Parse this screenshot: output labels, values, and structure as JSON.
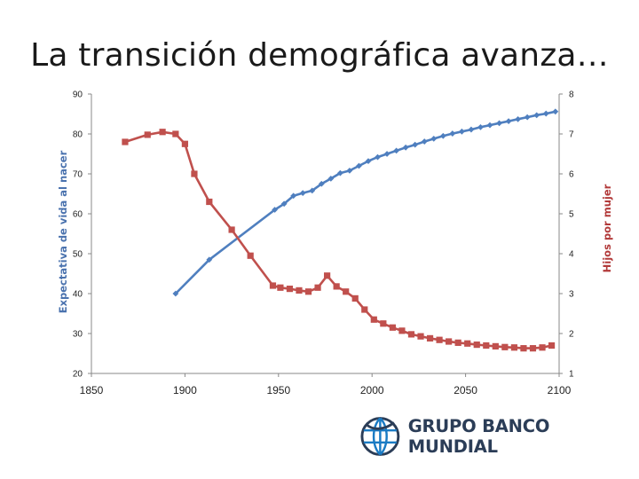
{
  "slide": {
    "title": "La transición demográfica avanza…"
  },
  "logo": {
    "text": "GRUPO BANCO MUNDIAL",
    "icon": "globe-icon"
  },
  "colors": {
    "life_expectancy": "#4f7fbf",
    "children_per_woman": "#c0504d",
    "left_label": "#4a72ae",
    "right_label": "#b23a3a",
    "logo_blue": "#1a7bc4",
    "logo_navy": "#2b3d57"
  },
  "chart_data": {
    "type": "line",
    "title": "",
    "xlabel": "",
    "ylabel": "Expectativa de vida al nacer",
    "y2label": "Hijos por mujer",
    "xlim": [
      1850,
      2100
    ],
    "ylim": [
      20,
      90
    ],
    "y2lim": [
      1,
      8
    ],
    "xticks": [
      "1850",
      "1900",
      "1950",
      "2000",
      "2050",
      "2100"
    ],
    "yticks": [
      "20",
      "30",
      "40",
      "50",
      "60",
      "70",
      "80",
      "90"
    ],
    "y2ticks": [
      "1",
      "2",
      "3",
      "4",
      "5",
      "6",
      "7",
      "8"
    ],
    "grid": false,
    "series": [
      {
        "name": "Expectativa de vida al nacer",
        "axis": "left",
        "marker": "diamond",
        "x": [
          1895,
          1913,
          1948,
          1953,
          1958,
          1963,
          1968,
          1973,
          1978,
          1983,
          1988,
          1993,
          1998,
          2003,
          2008,
          2013,
          2018,
          2023,
          2028,
          2033,
          2038,
          2043,
          2048,
          2053,
          2058,
          2063,
          2068,
          2073,
          2078,
          2083,
          2088,
          2093,
          2098
        ],
        "values": [
          40.0,
          48.5,
          61.0,
          62.5,
          64.5,
          65.2,
          65.8,
          67.5,
          68.8,
          70.2,
          70.8,
          72.0,
          73.2,
          74.2,
          75.0,
          75.8,
          76.6,
          77.3,
          78.1,
          78.8,
          79.5,
          80.1,
          80.6,
          81.1,
          81.7,
          82.2,
          82.7,
          83.2,
          83.7,
          84.2,
          84.7,
          85.1,
          85.6
        ]
      },
      {
        "name": "Hijos por mujer",
        "axis": "right",
        "marker": "square",
        "x": [
          1868,
          1880,
          1888,
          1895,
          1900,
          1905,
          1913,
          1925,
          1935,
          1947,
          1951,
          1956,
          1961,
          1966,
          1971,
          1976,
          1981,
          1986,
          1991,
          1996,
          2001,
          2006,
          2011,
          2016,
          2021,
          2026,
          2031,
          2036,
          2041,
          2046,
          2051,
          2056,
          2061,
          2066,
          2071,
          2076,
          2081,
          2086,
          2091,
          2096
        ],
        "values": [
          6.8,
          6.98,
          7.05,
          7.0,
          6.75,
          6.0,
          5.3,
          4.6,
          3.95,
          3.2,
          3.15,
          3.12,
          3.08,
          3.05,
          3.15,
          3.45,
          3.18,
          3.05,
          2.88,
          2.6,
          2.35,
          2.25,
          2.15,
          2.07,
          1.98,
          1.93,
          1.88,
          1.84,
          1.8,
          1.77,
          1.75,
          1.72,
          1.7,
          1.68,
          1.66,
          1.65,
          1.63,
          1.63,
          1.65,
          1.7
        ]
      }
    ]
  }
}
